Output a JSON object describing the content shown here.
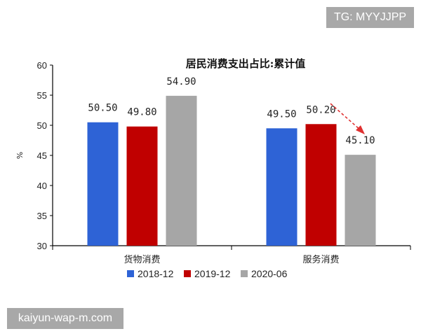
{
  "watermarks": {
    "top_right": "TG: MYYJJPP",
    "bottom_left": "kaiyun-wap-m.com"
  },
  "chart_data": {
    "type": "bar",
    "title": "居民消费支出占比:累计值",
    "ylabel": "%",
    "xlabel": "",
    "ylim": [
      30,
      60
    ],
    "yticks": [
      30,
      35,
      40,
      45,
      50,
      55,
      60
    ],
    "categories": [
      "货物消费",
      "服务消费"
    ],
    "series": [
      {
        "name": "2018-12",
        "color": "#2e63d6",
        "values": [
          50.5,
          49.5
        ],
        "labels": [
          "50.50",
          "49.50"
        ]
      },
      {
        "name": "2019-12",
        "color": "#c00000",
        "values": [
          49.8,
          50.2
        ],
        "labels": [
          "49.80",
          "50.20"
        ]
      },
      {
        "name": "2020-06",
        "color": "#a6a6a6",
        "values": [
          54.9,
          45.1
        ],
        "labels": [
          "54.90",
          "45.10"
        ]
      }
    ],
    "legend": "bottom",
    "grid": false,
    "annotations": [
      {
        "type": "arrow",
        "style": "red-dashed",
        "direction": "down-right",
        "near": "服务消费 2020-06"
      }
    ]
  }
}
